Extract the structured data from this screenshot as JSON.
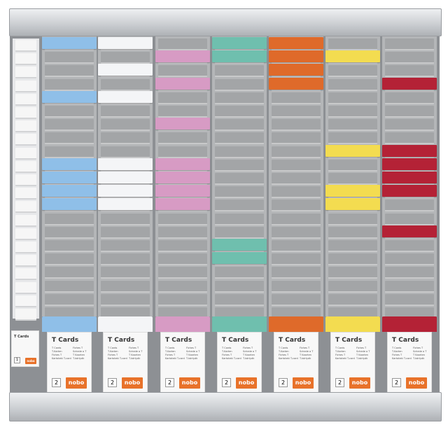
{
  "product": {
    "title": "T Cards",
    "names_left": [
      "T Cards",
      "T-Karten",
      "Fiches T",
      "Kartoteki T-card"
    ],
    "names_right": [
      "Fiches T",
      "Schede a T",
      "T Kaarten",
      "T-kártyák"
    ],
    "brand": "nobo",
    "size_narrow": "1",
    "size_wide": "2"
  },
  "columns": [
    {
      "color": "#8fbfe8",
      "cards": [
        0,
        4,
        9,
        10,
        11,
        12
      ]
    },
    {
      "color": "#f4f5f7",
      "cards": [
        0,
        2,
        4,
        9,
        10,
        11,
        12
      ]
    },
    {
      "color": "#d79bc4",
      "cards": [
        1,
        3,
        6,
        9,
        10,
        11,
        12
      ]
    },
    {
      "color": "#6fbfae",
      "cards": [
        0,
        1,
        15,
        16
      ]
    },
    {
      "color": "#df6a2a",
      "cards": [
        0,
        1,
        2,
        3
      ]
    },
    {
      "color": "#f3dc50",
      "cards": [
        1,
        8,
        11,
        12
      ]
    },
    {
      "color": "#b42236",
      "cards": [
        3,
        8,
        9,
        10,
        11,
        14
      ]
    }
  ]
}
